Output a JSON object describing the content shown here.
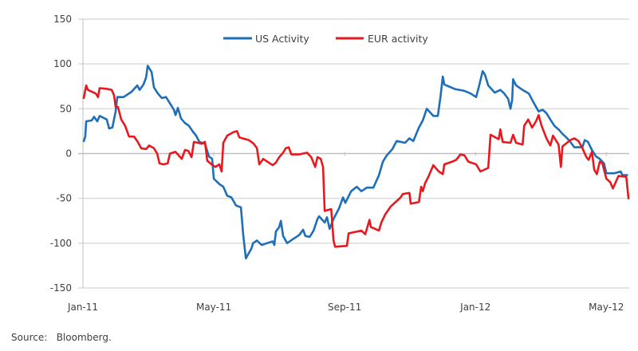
{
  "chart_data": {
    "type": "line",
    "title": "",
    "xlabel": "",
    "ylabel": "",
    "x_unit": "months since Jan-2011",
    "xlim": [
      0,
      16.7
    ],
    "ylim": [
      -150,
      150
    ],
    "yticks": [
      150,
      100,
      50,
      0,
      -50,
      -100,
      -150
    ],
    "xticks": [
      {
        "value": 0,
        "label": "Jan-11"
      },
      {
        "value": 4,
        "label": "May-11"
      },
      {
        "value": 8,
        "label": "Sep-11"
      },
      {
        "value": 12,
        "label": "Jan-12"
      },
      {
        "value": 16,
        "label": "May-12"
      }
    ],
    "grid": "horizontal",
    "legend_position": "top-center",
    "series": [
      {
        "name": "US Activity",
        "color": "#1f6fb8",
        "points": [
          [
            0.02,
            13
          ],
          [
            0.07,
            19
          ],
          [
            0.1,
            36
          ],
          [
            0.27,
            37
          ],
          [
            0.34,
            41
          ],
          [
            0.44,
            36
          ],
          [
            0.51,
            42
          ],
          [
            0.73,
            38
          ],
          [
            0.8,
            28
          ],
          [
            0.9,
            29
          ],
          [
            1.0,
            47
          ],
          [
            1.05,
            63
          ],
          [
            1.24,
            63
          ],
          [
            1.49,
            69
          ],
          [
            1.66,
            76
          ],
          [
            1.73,
            71
          ],
          [
            1.85,
            77
          ],
          [
            1.93,
            85
          ],
          [
            1.98,
            98
          ],
          [
            2.1,
            91
          ],
          [
            2.17,
            74
          ],
          [
            2.29,
            67
          ],
          [
            2.41,
            62
          ],
          [
            2.54,
            63
          ],
          [
            2.66,
            56
          ],
          [
            2.78,
            49
          ],
          [
            2.83,
            43
          ],
          [
            2.9,
            51
          ],
          [
            3.0,
            39
          ],
          [
            3.12,
            34
          ],
          [
            3.24,
            31
          ],
          [
            3.37,
            24
          ],
          [
            3.46,
            20
          ],
          [
            3.56,
            13
          ],
          [
            3.73,
            11
          ],
          [
            3.85,
            -3
          ],
          [
            3.95,
            -6
          ],
          [
            4.0,
            -28
          ],
          [
            4.17,
            -34
          ],
          [
            4.29,
            -37
          ],
          [
            4.41,
            -47
          ],
          [
            4.54,
            -49
          ],
          [
            4.68,
            -58
          ],
          [
            4.83,
            -60
          ],
          [
            4.9,
            -91
          ],
          [
            4.98,
            -117
          ],
          [
            5.15,
            -106
          ],
          [
            5.2,
            -100
          ],
          [
            5.32,
            -97
          ],
          [
            5.46,
            -102
          ],
          [
            5.63,
            -100
          ],
          [
            5.8,
            -98
          ],
          [
            5.85,
            -102
          ],
          [
            5.9,
            -87
          ],
          [
            6.0,
            -82
          ],
          [
            6.05,
            -75
          ],
          [
            6.12,
            -92
          ],
          [
            6.24,
            -100
          ],
          [
            6.44,
            -95
          ],
          [
            6.61,
            -91
          ],
          [
            6.73,
            -85
          ],
          [
            6.8,
            -92
          ],
          [
            6.93,
            -93
          ],
          [
            7.05,
            -86
          ],
          [
            7.17,
            -73
          ],
          [
            7.22,
            -70
          ],
          [
            7.39,
            -77
          ],
          [
            7.46,
            -71
          ],
          [
            7.54,
            -84
          ],
          [
            7.66,
            -73
          ],
          [
            7.83,
            -61
          ],
          [
            7.95,
            -49
          ],
          [
            8.02,
            -55
          ],
          [
            8.2,
            -42
          ],
          [
            8.37,
            -37
          ],
          [
            8.51,
            -42
          ],
          [
            8.68,
            -38
          ],
          [
            8.88,
            -38
          ],
          [
            9.05,
            -24
          ],
          [
            9.17,
            -9
          ],
          [
            9.29,
            -2
          ],
          [
            9.46,
            5
          ],
          [
            9.59,
            14
          ],
          [
            9.85,
            12
          ],
          [
            9.98,
            17
          ],
          [
            10.1,
            14
          ],
          [
            10.27,
            29
          ],
          [
            10.39,
            37
          ],
          [
            10.51,
            50
          ],
          [
            10.71,
            42
          ],
          [
            10.85,
            42
          ],
          [
            10.93,
            63
          ],
          [
            11.0,
            86
          ],
          [
            11.05,
            77
          ],
          [
            11.37,
            72
          ],
          [
            11.66,
            70
          ],
          [
            11.85,
            67
          ],
          [
            12.02,
            63
          ],
          [
            12.1,
            74
          ],
          [
            12.22,
            92
          ],
          [
            12.29,
            88
          ],
          [
            12.39,
            76
          ],
          [
            12.59,
            68
          ],
          [
            12.76,
            71
          ],
          [
            12.88,
            67
          ],
          [
            13.0,
            61
          ],
          [
            13.07,
            50
          ],
          [
            13.12,
            60
          ],
          [
            13.15,
            83
          ],
          [
            13.24,
            76
          ],
          [
            13.44,
            71
          ],
          [
            13.63,
            67
          ],
          [
            13.76,
            58
          ],
          [
            13.93,
            47
          ],
          [
            14.05,
            49
          ],
          [
            14.17,
            45
          ],
          [
            14.29,
            38
          ],
          [
            14.41,
            31
          ],
          [
            14.54,
            27
          ],
          [
            14.66,
            22
          ],
          [
            14.78,
            18
          ],
          [
            14.9,
            13
          ],
          [
            15.02,
            7
          ],
          [
            15.27,
            7
          ],
          [
            15.34,
            15
          ],
          [
            15.44,
            13
          ],
          [
            15.56,
            4
          ],
          [
            15.68,
            -3
          ],
          [
            15.8,
            -6
          ],
          [
            15.93,
            -11
          ],
          [
            16.0,
            -22
          ],
          [
            16.24,
            -22
          ],
          [
            16.44,
            -20
          ],
          [
            16.49,
            -24
          ],
          [
            16.66,
            -24
          ]
        ]
      },
      {
        "name": "EUR activity",
        "color": "#e8191e",
        "points": [
          [
            0.02,
            61
          ],
          [
            0.1,
            76
          ],
          [
            0.15,
            71
          ],
          [
            0.39,
            67
          ],
          [
            0.46,
            63
          ],
          [
            0.51,
            73
          ],
          [
            0.76,
            72
          ],
          [
            0.88,
            71
          ],
          [
            0.95,
            65
          ],
          [
            1.0,
            52
          ],
          [
            1.07,
            52
          ],
          [
            1.17,
            38
          ],
          [
            1.29,
            31
          ],
          [
            1.41,
            19
          ],
          [
            1.56,
            19
          ],
          [
            1.66,
            14
          ],
          [
            1.78,
            6
          ],
          [
            1.93,
            5
          ],
          [
            2.02,
            9
          ],
          [
            2.17,
            6
          ],
          [
            2.27,
            0
          ],
          [
            2.34,
            -11
          ],
          [
            2.46,
            -12
          ],
          [
            2.59,
            -11
          ],
          [
            2.66,
            0
          ],
          [
            2.83,
            2
          ],
          [
            2.95,
            -3
          ],
          [
            3.02,
            -6
          ],
          [
            3.12,
            4
          ],
          [
            3.22,
            3
          ],
          [
            3.32,
            -4
          ],
          [
            3.39,
            13
          ],
          [
            3.63,
            11
          ],
          [
            3.73,
            13
          ],
          [
            3.8,
            -8
          ],
          [
            3.93,
            -12
          ],
          [
            4.05,
            -15
          ],
          [
            4.17,
            -12
          ],
          [
            4.24,
            -20
          ],
          [
            4.29,
            12
          ],
          [
            4.41,
            20
          ],
          [
            4.61,
            24
          ],
          [
            4.71,
            25
          ],
          [
            4.78,
            18
          ],
          [
            5.07,
            15
          ],
          [
            5.22,
            11
          ],
          [
            5.32,
            6
          ],
          [
            5.39,
            -12
          ],
          [
            5.51,
            -6
          ],
          [
            5.8,
            -13
          ],
          [
            5.9,
            -10
          ],
          [
            6.0,
            -4
          ],
          [
            6.12,
            1
          ],
          [
            6.2,
            6
          ],
          [
            6.29,
            7
          ],
          [
            6.37,
            -1
          ],
          [
            6.61,
            -1
          ],
          [
            6.85,
            1
          ],
          [
            6.98,
            -4
          ],
          [
            7.1,
            -15
          ],
          [
            7.17,
            -4
          ],
          [
            7.27,
            -6
          ],
          [
            7.34,
            -15
          ],
          [
            7.39,
            -64
          ],
          [
            7.59,
            -62
          ],
          [
            7.66,
            -97
          ],
          [
            7.71,
            -104
          ],
          [
            8.07,
            -103
          ],
          [
            8.12,
            -89
          ],
          [
            8.51,
            -86
          ],
          [
            8.63,
            -90
          ],
          [
            8.76,
            -74
          ],
          [
            8.8,
            -82
          ],
          [
            9.05,
            -86
          ],
          [
            9.12,
            -77
          ],
          [
            9.24,
            -68
          ],
          [
            9.41,
            -59
          ],
          [
            9.71,
            -49
          ],
          [
            9.78,
            -45
          ],
          [
            9.98,
            -44
          ],
          [
            10.02,
            -56
          ],
          [
            10.27,
            -54
          ],
          [
            10.34,
            -37
          ],
          [
            10.39,
            -42
          ],
          [
            10.46,
            -33
          ],
          [
            10.56,
            -26
          ],
          [
            10.71,
            -13
          ],
          [
            10.88,
            -20
          ],
          [
            11.0,
            -23
          ],
          [
            11.05,
            -12
          ],
          [
            11.29,
            -9
          ],
          [
            11.41,
            -7
          ],
          [
            11.54,
            -1
          ],
          [
            11.66,
            -2
          ],
          [
            11.78,
            -9
          ],
          [
            12.02,
            -12
          ],
          [
            12.15,
            -20
          ],
          [
            12.39,
            -16
          ],
          [
            12.46,
            21
          ],
          [
            12.71,
            16
          ],
          [
            12.76,
            27
          ],
          [
            12.83,
            13
          ],
          [
            13.07,
            12
          ],
          [
            13.15,
            21
          ],
          [
            13.24,
            12
          ],
          [
            13.44,
            10
          ],
          [
            13.49,
            31
          ],
          [
            13.61,
            38
          ],
          [
            13.73,
            29
          ],
          [
            13.85,
            36
          ],
          [
            13.93,
            43
          ],
          [
            14.02,
            31
          ],
          [
            14.17,
            17
          ],
          [
            14.29,
            9
          ],
          [
            14.37,
            20
          ],
          [
            14.54,
            10
          ],
          [
            14.61,
            -15
          ],
          [
            14.66,
            8
          ],
          [
            14.9,
            15
          ],
          [
            15.02,
            17
          ],
          [
            15.15,
            14
          ],
          [
            15.27,
            6
          ],
          [
            15.39,
            -4
          ],
          [
            15.46,
            -7
          ],
          [
            15.56,
            2
          ],
          [
            15.63,
            -18
          ],
          [
            15.71,
            -23
          ],
          [
            15.8,
            -9
          ],
          [
            15.88,
            -11
          ],
          [
            16.0,
            -28
          ],
          [
            16.12,
            -32
          ],
          [
            16.2,
            -39
          ],
          [
            16.37,
            -25
          ],
          [
            16.61,
            -26
          ],
          [
            16.68,
            -51
          ]
        ]
      }
    ]
  },
  "source": "Source:   Bloomberg."
}
